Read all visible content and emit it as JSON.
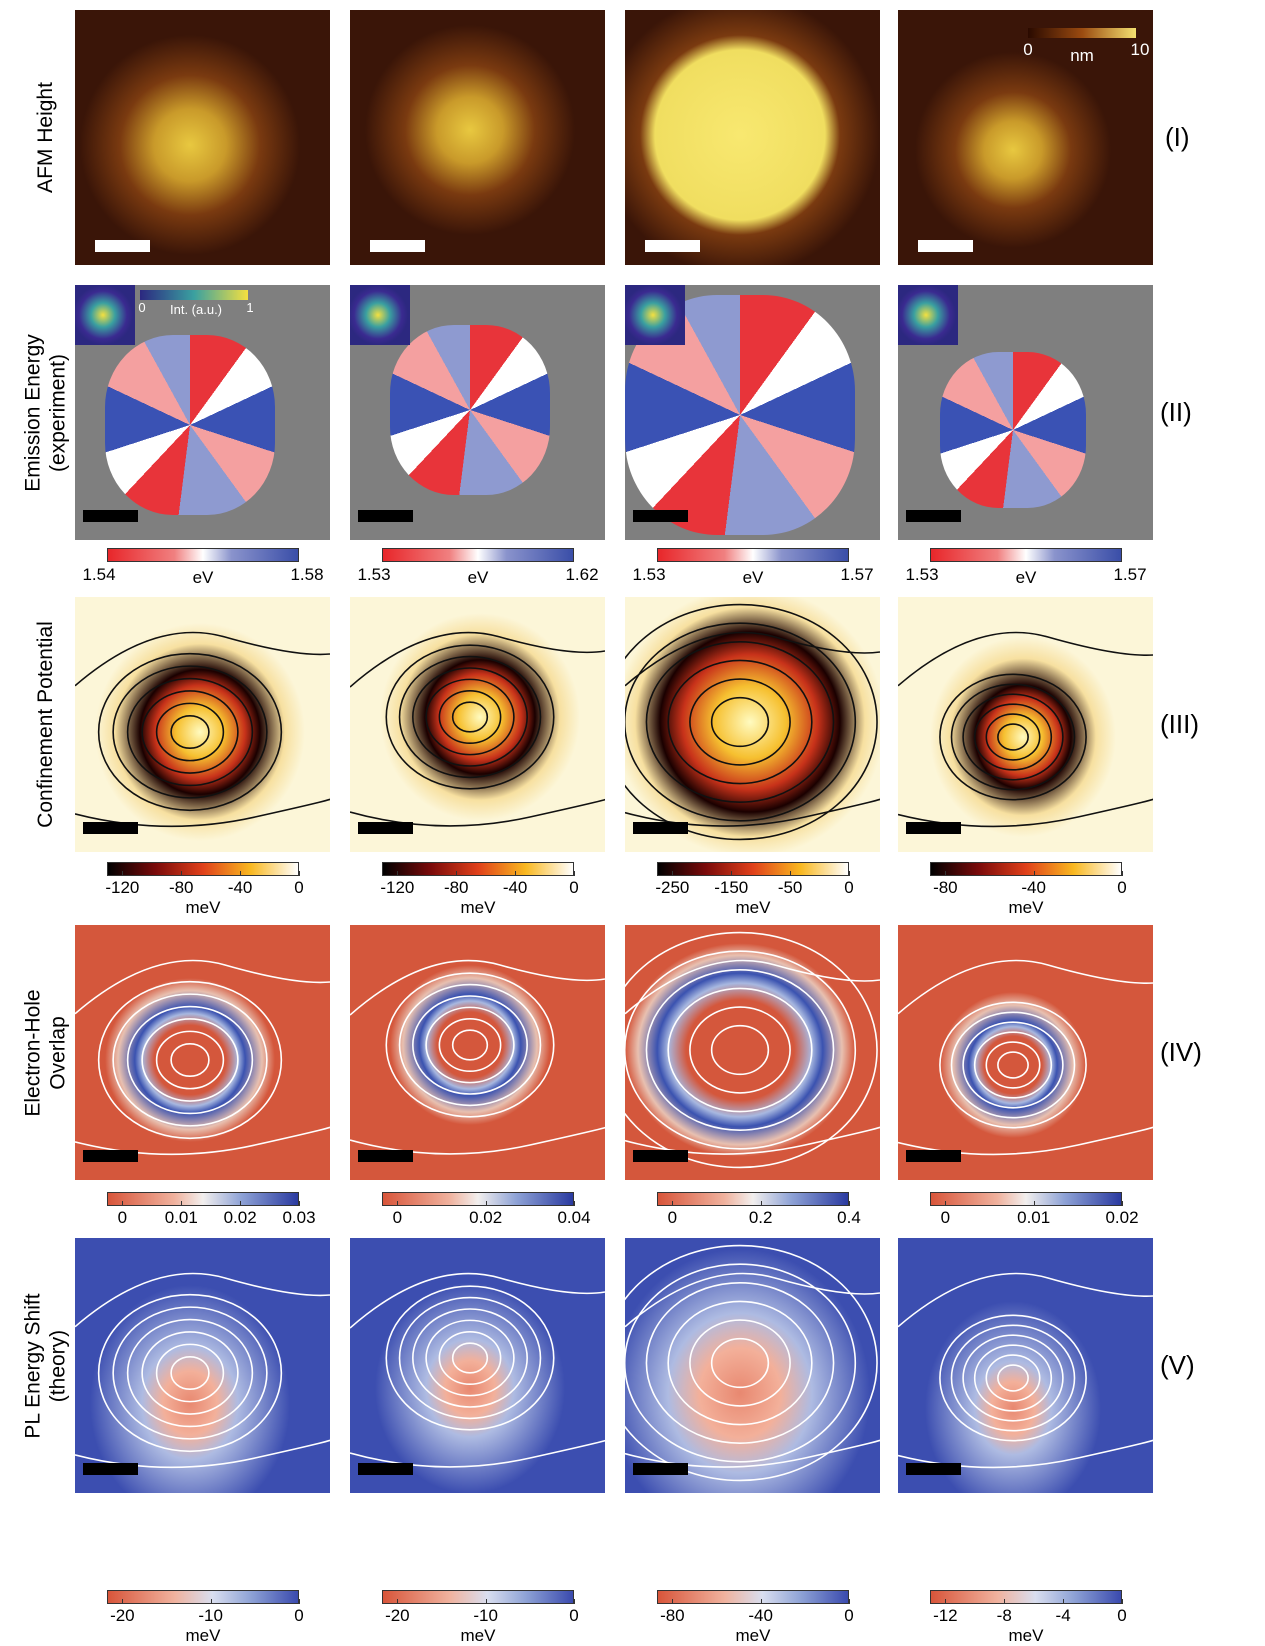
{
  "rows": [
    {
      "label": [
        "AFM Height"
      ],
      "numeral": "(I)",
      "colorbar": {
        "ticks": [
          "0",
          "10"
        ],
        "unit": "nm"
      }
    },
    {
      "label": [
        "Emission Energy",
        "(experiment)"
      ],
      "numeral": "(II)",
      "inset_colorbar": {
        "ticks": [
          "0",
          "1"
        ],
        "unit": "Int. (a.u.)"
      },
      "colorbars": [
        {
          "ticks": [
            "1.54",
            "1.58"
          ],
          "unit": "eV"
        },
        {
          "ticks": [
            "1.53",
            "1.62"
          ],
          "unit": "eV"
        },
        {
          "ticks": [
            "1.53",
            "1.57"
          ],
          "unit": "eV"
        },
        {
          "ticks": [
            "1.53",
            "1.57"
          ],
          "unit": "eV"
        }
      ]
    },
    {
      "label": [
        "Confinement Potential"
      ],
      "numeral": "(III)",
      "colorbars": [
        {
          "ticks": [
            "-120",
            "-80",
            "-40",
            "0"
          ],
          "unit": "meV"
        },
        {
          "ticks": [
            "-120",
            "-80",
            "-40",
            "0"
          ],
          "unit": "meV"
        },
        {
          "ticks": [
            "-250",
            "-150",
            "-50",
            "0"
          ],
          "unit": "meV"
        },
        {
          "ticks": [
            "-80",
            "-40",
            "0"
          ],
          "unit": "meV"
        }
      ]
    },
    {
      "label": [
        "Electron-Hole",
        "Overlap"
      ],
      "numeral": "(IV)",
      "colorbars": [
        {
          "ticks": [
            "0",
            "0.01",
            "0.02",
            "0.03"
          ]
        },
        {
          "ticks": [
            "0",
            "0.02",
            "0.04"
          ]
        },
        {
          "ticks": [
            "0",
            "0.2",
            "0.4"
          ]
        },
        {
          "ticks": [
            "0",
            "0.01",
            "0.02"
          ]
        }
      ]
    },
    {
      "label": [
        "PL Energy Shift",
        "(theory)"
      ],
      "numeral": "(V)",
      "colorbars": [
        {
          "ticks": [
            "-20",
            "-10",
            "0"
          ],
          "unit": "meV"
        },
        {
          "ticks": [
            "-20",
            "-10",
            "0"
          ],
          "unit": "meV"
        },
        {
          "ticks": [
            "-80",
            "-40",
            "0"
          ],
          "unit": "meV"
        },
        {
          "ticks": [
            "-12",
            "-8",
            "-4",
            "0"
          ],
          "unit": "meV"
        }
      ]
    }
  ]
}
